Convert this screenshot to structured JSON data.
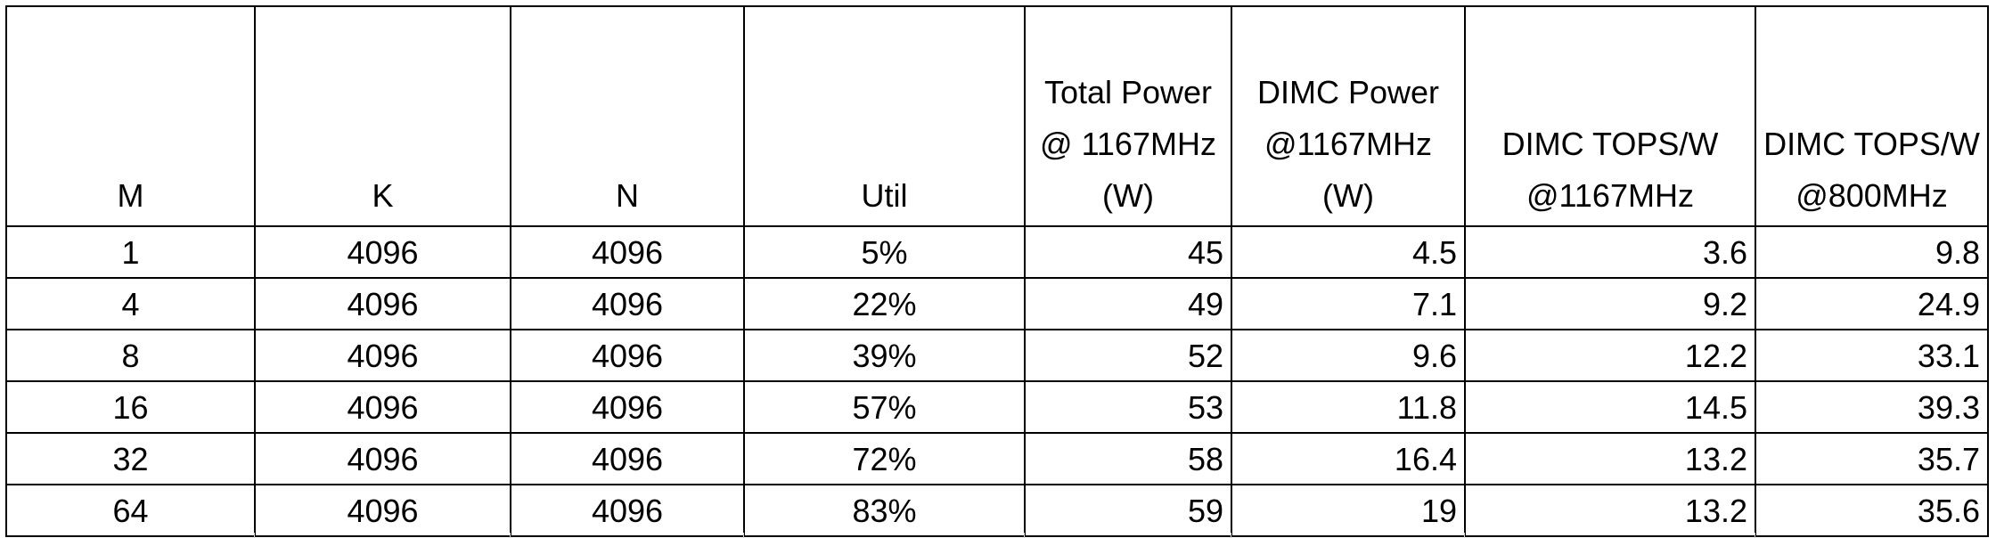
{
  "table": {
    "columns": [
      {
        "lines": [
          "M"
        ],
        "align": "center"
      },
      {
        "lines": [
          "K"
        ],
        "align": "center"
      },
      {
        "lines": [
          "N"
        ],
        "align": "center"
      },
      {
        "lines": [
          "Util"
        ],
        "align": "center"
      },
      {
        "lines": [
          "Total Power",
          "@ 1167MHz",
          "(W)"
        ],
        "align": "right"
      },
      {
        "lines": [
          "DIMC Power",
          "@1167MHz",
          "(W)"
        ],
        "align": "right"
      },
      {
        "lines": [
          "DIMC TOPS/W",
          "@1167MHz"
        ],
        "align": "right"
      },
      {
        "lines": [
          "DIMC TOPS/W",
          "@800MHz"
        ],
        "align": "right"
      }
    ],
    "rows": [
      [
        "1",
        "4096",
        "4096",
        "5%",
        "45",
        "4.5",
        "3.6",
        "9.8"
      ],
      [
        "4",
        "4096",
        "4096",
        "22%",
        "49",
        "7.1",
        "9.2",
        "24.9"
      ],
      [
        "8",
        "4096",
        "4096",
        "39%",
        "52",
        "9.6",
        "12.2",
        "33.1"
      ],
      [
        "16",
        "4096",
        "4096",
        "57%",
        "53",
        "11.8",
        "14.5",
        "39.3"
      ],
      [
        "32",
        "4096",
        "4096",
        "72%",
        "58",
        "16.4",
        "13.2",
        "35.7"
      ],
      [
        "64",
        "4096",
        "4096",
        "83%",
        "59",
        "19",
        "13.2",
        "35.6"
      ]
    ]
  }
}
